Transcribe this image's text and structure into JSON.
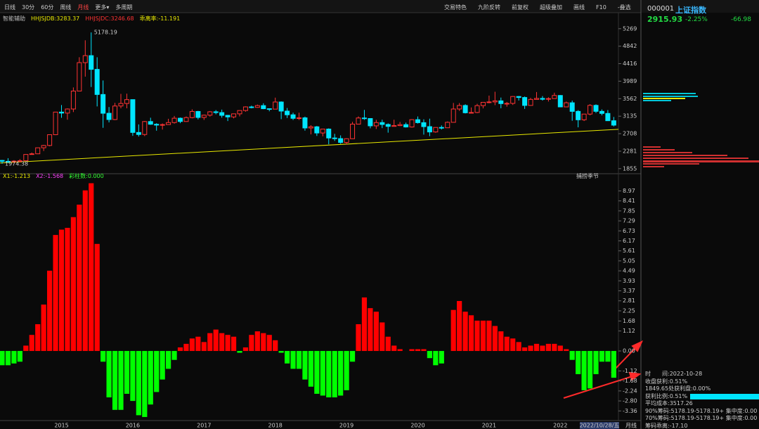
{
  "toolbar": {
    "left": [
      "日线",
      "30分",
      "60分",
      "周线",
      "月线",
      "更多▾",
      "多周期"
    ],
    "right": [
      "交易特色",
      "九阶反转",
      "前复权",
      "超级叠加",
      "画线",
      "F10",
      "-叠选"
    ]
  },
  "quote": {
    "code": "000001",
    "name": "上证指数",
    "price": "2915.93",
    "change_pct": "-2.25%",
    "change": "-66.98"
  },
  "info_panel": [
    "时　　间:2022-10-28",
    "收盘获利:0.51%",
    "1849.65处获利盘:0.00%",
    "获利比例:0.51%",
    "平均成本:3517.26",
    "90%筹码:5178.19-5178.19+ 集中度:0.00",
    "70%筹码:5178.19-5178.19+ 集中度:0.00",
    "筹码乖离:-17.10"
  ],
  "footer": {
    "date": "2022/10/28/五",
    "period": "月线"
  },
  "chart_data": [
    {
      "type": "candlestick",
      "indicators": [
        {
          "text": "智能辅助",
          "color": "#bbbbbb"
        },
        {
          "text": "HHJSJDB:3283.37",
          "color": "#e8e800"
        },
        {
          "text": "HHJSJDC:3246.68",
          "color": "#ff3333"
        },
        {
          "text": "乖离率:-11.191",
          "color": "#e8e800"
        }
      ],
      "high_label": "5178.19",
      "low_label": "1974.38",
      "up_color": "#ff3333",
      "down_color": "#00e5ff",
      "trendline": [
        1992,
        2815
      ],
      "trend_color": "#e8e800",
      "ylim": [
        1800,
        5420
      ],
      "yticks": [
        1855,
        2281,
        2708,
        3135,
        3562,
        3989,
        4416,
        4842,
        5269
      ],
      "ohlc": [
        [
          2056,
          2068,
          1974,
          2033
        ],
        [
          2033,
          2110,
          1997,
          2026
        ],
        [
          2026,
          2062,
          1991,
          2039
        ],
        [
          2039,
          2087,
          2010,
          2048
        ],
        [
          2048,
          2207,
          2044,
          2201
        ],
        [
          2201,
          2248,
          2195,
          2217
        ],
        [
          2217,
          2366,
          2210,
          2364
        ],
        [
          2364,
          2435,
          2286,
          2420
        ],
        [
          2420,
          2683,
          2400,
          2683
        ],
        [
          2683,
          3239,
          2673,
          3235
        ],
        [
          3235,
          3406,
          3095,
          3210
        ],
        [
          3210,
          3325,
          3049,
          3310
        ],
        [
          3310,
          3836,
          3235,
          3748
        ],
        [
          3748,
          4573,
          3742,
          4441
        ],
        [
          4441,
          4986,
          4099,
          4612
        ],
        [
          4612,
          5178,
          3847,
          4277
        ],
        [
          4277,
          4572,
          3373,
          3664
        ],
        [
          3664,
          4006,
          2851,
          3206
        ],
        [
          3206,
          3358,
          2983,
          3053
        ],
        [
          3053,
          3459,
          3039,
          3383
        ],
        [
          3383,
          3678,
          3327,
          3445
        ],
        [
          3445,
          3684,
          3327,
          3539
        ],
        [
          3539,
          3539,
          2655,
          2738
        ],
        [
          2738,
          2934,
          2638,
          2688
        ],
        [
          2688,
          3018,
          2649,
          3004
        ],
        [
          3004,
          3097,
          2924,
          2938
        ],
        [
          2938,
          2963,
          2781,
          2917
        ],
        [
          2917,
          2958,
          2808,
          2930
        ],
        [
          2930,
          3071,
          2933,
          2979
        ],
        [
          2979,
          3140,
          2954,
          3085
        ],
        [
          3085,
          3101,
          2964,
          3005
        ],
        [
          3005,
          3128,
          2997,
          3100
        ],
        [
          3100,
          3301,
          3083,
          3250
        ],
        [
          3250,
          3264,
          3056,
          3104
        ],
        [
          3104,
          3174,
          3044,
          3159
        ],
        [
          3159,
          3260,
          3124,
          3242
        ],
        [
          3242,
          3283,
          3180,
          3223
        ],
        [
          3223,
          3295,
          3098,
          3155
        ],
        [
          3155,
          3166,
          3016,
          3117
        ],
        [
          3117,
          3200,
          3081,
          3192
        ],
        [
          3192,
          3277,
          3130,
          3273
        ],
        [
          3273,
          3374,
          3245,
          3361
        ],
        [
          3361,
          3391,
          3326,
          3349
        ],
        [
          3349,
          3418,
          3340,
          3393
        ],
        [
          3393,
          3450,
          3306,
          3317
        ],
        [
          3317,
          3324,
          3254,
          3307
        ],
        [
          3307,
          3587,
          3306,
          3481
        ],
        [
          3481,
          3496,
          3062,
          3259
        ],
        [
          3259,
          3334,
          3091,
          3169
        ],
        [
          3169,
          3220,
          3041,
          3082
        ],
        [
          3082,
          3219,
          3041,
          3095
        ],
        [
          3095,
          3125,
          2782,
          2847
        ],
        [
          2847,
          2915,
          2691,
          2876
        ],
        [
          2876,
          2896,
          2653,
          2725
        ],
        [
          2725,
          2827,
          2644,
          2821
        ],
        [
          2821,
          2838,
          2449,
          2603
        ],
        [
          2603,
          2704,
          2531,
          2588
        ],
        [
          2588,
          2667,
          2463,
          2494
        ],
        [
          2494,
          2596,
          2440,
          2585
        ],
        [
          2585,
          2997,
          2584,
          2941
        ],
        [
          2941,
          3130,
          2941,
          3091
        ],
        [
          3091,
          3288,
          3045,
          3078
        ],
        [
          3078,
          3083,
          2839,
          2899
        ],
        [
          2899,
          3046,
          2823,
          2979
        ],
        [
          2979,
          3049,
          2844,
          2933
        ],
        [
          2933,
          2959,
          2733,
          2886
        ],
        [
          2886,
          3048,
          2893,
          2905
        ],
        [
          2905,
          2994,
          2892,
          2929
        ],
        [
          2929,
          2978,
          2857,
          2871
        ],
        [
          2871,
          3062,
          2857,
          3050
        ],
        [
          3050,
          3128,
          2956,
          2977
        ],
        [
          2977,
          3058,
          2685,
          2880
        ],
        [
          2880,
          3074,
          2647,
          2750
        ],
        [
          2750,
          2864,
          2732,
          2860
        ],
        [
          2860,
          2909,
          2810,
          2852
        ],
        [
          2852,
          3006,
          2861,
          2985
        ],
        [
          2985,
          3458,
          3006,
          3310
        ],
        [
          3310,
          3455,
          3264,
          3396
        ],
        [
          3396,
          3425,
          3202,
          3218
        ],
        [
          3218,
          3348,
          3219,
          3225
        ],
        [
          3225,
          3437,
          3209,
          3392
        ],
        [
          3392,
          3474,
          3325,
          3473
        ],
        [
          3473,
          3637,
          3451,
          3483
        ],
        [
          3483,
          3731,
          3403,
          3509
        ],
        [
          3509,
          3589,
          3328,
          3442
        ],
        [
          3442,
          3482,
          3367,
          3447
        ],
        [
          3447,
          3625,
          3409,
          3615
        ],
        [
          3615,
          3625,
          3517,
          3591
        ],
        [
          3591,
          3615,
          3312,
          3397
        ],
        [
          3397,
          3581,
          3388,
          3544
        ],
        [
          3544,
          3723,
          3553,
          3568
        ],
        [
          3568,
          3625,
          3515,
          3547
        ],
        [
          3547,
          3597,
          3492,
          3564
        ],
        [
          3564,
          3708,
          3577,
          3640
        ],
        [
          3640,
          3650,
          3357,
          3361
        ],
        [
          3361,
          3491,
          3370,
          3462
        ],
        [
          3462,
          3516,
          3023,
          3252
        ],
        [
          3252,
          3282,
          2863,
          3047
        ],
        [
          3047,
          3186,
          3016,
          3186
        ],
        [
          3186,
          3429,
          3156,
          3399
        ],
        [
          3399,
          3424,
          3214,
          3253
        ],
        [
          3253,
          3300,
          3155,
          3202
        ],
        [
          3202,
          3284,
          3022,
          3024
        ],
        [
          3024,
          3116,
          2885,
          2916
        ]
      ]
    },
    {
      "type": "bar",
      "title": "捕捞季节",
      "legend": [
        {
          "text": "X1:-1.213",
          "color": "#e8e800"
        },
        {
          "text": "X2:-1.568",
          "color": "#ff44ff"
        },
        {
          "text": "彩柱数:0.000",
          "color": "#33ff33"
        }
      ],
      "pos_color": "#ff0000",
      "neg_color": "#00ff00",
      "ylim": [
        -3.9,
        9.5
      ],
      "yticks": [
        8.97,
        8.41,
        7.85,
        7.29,
        6.73,
        6.17,
        5.61,
        5.05,
        4.49,
        3.93,
        3.37,
        2.81,
        2.25,
        1.68,
        1.12,
        {
          "value": 0,
          "label": "0.00"
        },
        -1.12,
        -1.68,
        -2.24,
        {
          "value": -2.8,
          "label": "-2.80"
        },
        -3.36
      ],
      "categories": [
        null,
        null,
        null,
        null,
        null,
        null,
        null,
        null,
        null,
        null,
        "2015",
        null,
        null,
        null,
        null,
        null,
        null,
        null,
        null,
        null,
        null,
        null,
        "2016",
        null,
        null,
        null,
        null,
        null,
        null,
        null,
        null,
        null,
        null,
        null,
        "2017",
        null,
        null,
        null,
        null,
        null,
        null,
        null,
        null,
        null,
        null,
        null,
        "2018",
        null,
        null,
        null,
        null,
        null,
        null,
        null,
        null,
        null,
        null,
        null,
        "2019",
        null,
        null,
        null,
        null,
        null,
        null,
        null,
        null,
        null,
        null,
        null,
        "2020",
        null,
        null,
        null,
        null,
        null,
        null,
        null,
        null,
        null,
        null,
        null,
        "2021",
        null,
        null,
        null,
        null,
        null,
        null,
        null,
        null,
        null,
        null,
        null,
        "2022",
        null,
        null,
        null,
        null,
        null,
        null,
        null,
        null,
        null
      ],
      "values": [
        -0.8,
        -0.8,
        -0.7,
        -0.6,
        0.3,
        0.9,
        1.5,
        2.6,
        4.5,
        6.5,
        6.8,
        6.9,
        7.5,
        8.2,
        9.0,
        9.4,
        6.0,
        -0.6,
        -2.6,
        -3.3,
        -3.3,
        -2.4,
        -2.8,
        -3.6,
        -3.7,
        -3.0,
        -2.3,
        -1.6,
        -1.0,
        -0.5,
        0.2,
        0.4,
        0.7,
        0.8,
        0.5,
        1.0,
        1.2,
        1.0,
        0.9,
        0.8,
        -0.1,
        0.2,
        0.9,
        1.1,
        1.0,
        0.9,
        0.6,
        -0.1,
        -0.7,
        -1.0,
        -1.0,
        -1.6,
        -2.0,
        -2.4,
        -2.5,
        -2.6,
        -2.6,
        -2.5,
        -2.2,
        -0.6,
        1.5,
        3.0,
        2.4,
        2.2,
        1.6,
        0.8,
        0.3,
        0.1,
        0.0,
        0.1,
        0.1,
        0.1,
        -0.4,
        -0.8,
        -0.7,
        0.0,
        2.3,
        2.8,
        2.2,
        2.0,
        1.7,
        1.7,
        1.7,
        1.4,
        1.1,
        0.8,
        0.7,
        0.5,
        0.2,
        0.3,
        0.4,
        0.3,
        0.4,
        0.4,
        0.3,
        0.1,
        -0.5,
        -1.3,
        -2.2,
        -2.1,
        -1.3,
        -0.6,
        -0.6,
        -1.5
      ]
    }
  ]
}
